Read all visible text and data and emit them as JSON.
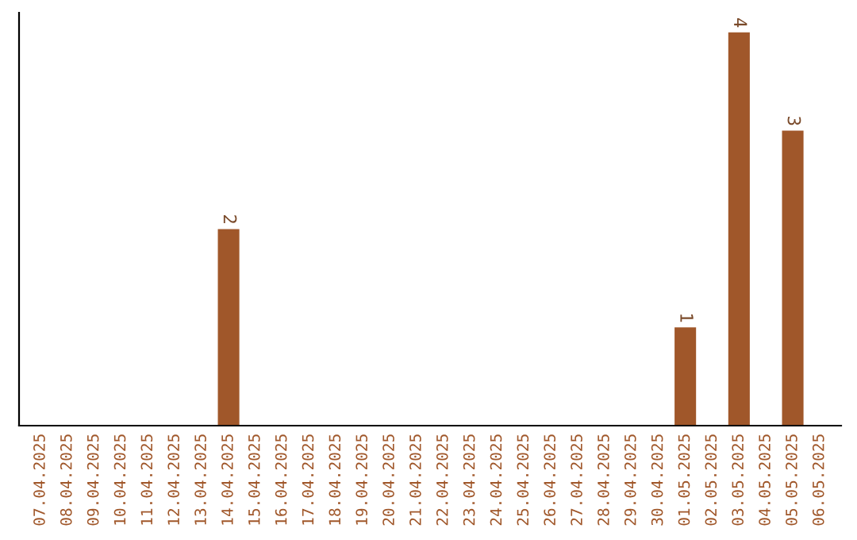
{
  "chart_data": {
    "type": "bar",
    "categories": [
      "07.04.2025",
      "08.04.2025",
      "09.04.2025",
      "10.04.2025",
      "11.04.2025",
      "12.04.2025",
      "13.04.2025",
      "14.04.2025",
      "15.04.2025",
      "16.04.2025",
      "17.04.2025",
      "18.04.2025",
      "19.04.2025",
      "20.04.2025",
      "21.04.2025",
      "22.04.2025",
      "23.04.2025",
      "24.04.2025",
      "25.04.2025",
      "26.04.2025",
      "27.04.2025",
      "28.04.2025",
      "29.04.2025",
      "30.04.2025",
      "01.05.2025",
      "02.05.2025",
      "03.05.2025",
      "04.05.2025",
      "05.05.2025",
      "06.05.2025"
    ],
    "values": [
      0,
      0,
      0,
      0,
      0,
      0,
      0,
      2,
      0,
      0,
      0,
      0,
      0,
      0,
      0,
      0,
      0,
      0,
      0,
      0,
      0,
      0,
      0,
      0,
      1,
      0,
      4,
      0,
      3,
      0
    ],
    "value_labels": [
      null,
      null,
      null,
      null,
      null,
      null,
      null,
      "2",
      null,
      null,
      null,
      null,
      null,
      null,
      null,
      null,
      null,
      null,
      null,
      null,
      null,
      null,
      null,
      null,
      "1",
      null,
      "4",
      null,
      "3",
      null
    ],
    "color": "#a0572a",
    "ylim": [
      0,
      4.2
    ],
    "tick_labels": "x"
  }
}
